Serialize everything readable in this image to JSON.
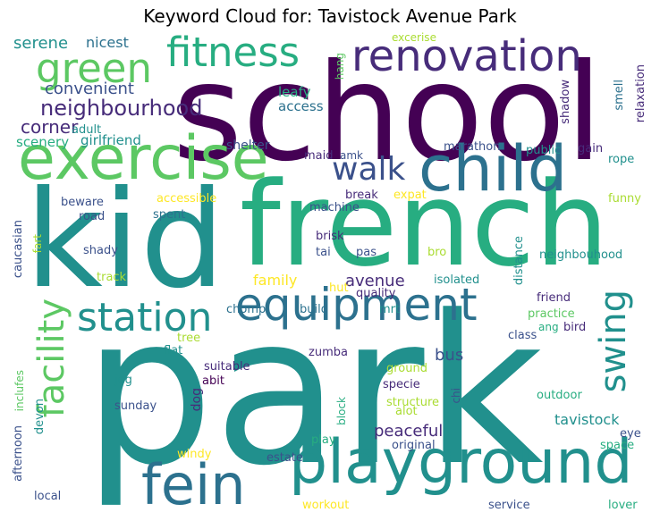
{
  "title": "Keyword Cloud for: Tavistock Avenue Park",
  "colors": {
    "dark_purple": "#440154",
    "purple": "#472c7a",
    "indigo": "#3b518b",
    "blue": "#2c718e",
    "teal_blue": "#21908d",
    "teal": "#27ad81",
    "green": "#5cc863",
    "lime": "#aadc32",
    "yellow": "#fde725"
  },
  "words": [
    {
      "text": "school"
    },
    {
      "text": "park"
    },
    {
      "text": "kid"
    },
    {
      "text": "french"
    },
    {
      "text": "exercise"
    },
    {
      "text": "child"
    },
    {
      "text": "playground"
    },
    {
      "text": "fein"
    },
    {
      "text": "equipment"
    },
    {
      "text": "station"
    },
    {
      "text": "fitness"
    },
    {
      "text": "renovation"
    },
    {
      "text": "green"
    },
    {
      "text": "facility"
    },
    {
      "text": "swing"
    },
    {
      "text": "walk"
    },
    {
      "text": "neighbourhood"
    },
    {
      "text": "convenient"
    },
    {
      "text": "serene"
    },
    {
      "text": "nicest"
    },
    {
      "text": "corner"
    },
    {
      "text": "adult"
    },
    {
      "text": "scenery"
    },
    {
      "text": "girlfriend"
    },
    {
      "text": "leafy"
    },
    {
      "text": "access"
    },
    {
      "text": "hang"
    },
    {
      "text": "excerise"
    },
    {
      "text": "shadow"
    },
    {
      "text": "smell"
    },
    {
      "text": "relaxation"
    },
    {
      "text": "shelter"
    },
    {
      "text": "maid"
    },
    {
      "text": "amk"
    },
    {
      "text": "marathon"
    },
    {
      "text": "public"
    },
    {
      "text": "gain"
    },
    {
      "text": "rope"
    },
    {
      "text": "accessible"
    },
    {
      "text": "break"
    },
    {
      "text": "expat"
    },
    {
      "text": "funny"
    },
    {
      "text": "beware"
    },
    {
      "text": "machine"
    },
    {
      "text": "road"
    },
    {
      "text": "spent"
    },
    {
      "text": "caucasian"
    },
    {
      "text": "fart"
    },
    {
      "text": "shady"
    },
    {
      "text": "brisk"
    },
    {
      "text": "tai"
    },
    {
      "text": "pas"
    },
    {
      "text": "bro"
    },
    {
      "text": "distance"
    },
    {
      "text": "neighbouhood"
    },
    {
      "text": "track"
    },
    {
      "text": "family"
    },
    {
      "text": "avenue"
    },
    {
      "text": "hut"
    },
    {
      "text": "isolated"
    },
    {
      "text": "quality"
    },
    {
      "text": "friend"
    },
    {
      "text": "practice"
    },
    {
      "text": "ang"
    },
    {
      "text": "bird"
    },
    {
      "text": "tree"
    },
    {
      "text": "chomp"
    },
    {
      "text": "build"
    },
    {
      "text": "mrt"
    },
    {
      "text": "class"
    },
    {
      "text": "flat"
    },
    {
      "text": "zumba"
    },
    {
      "text": "bus"
    },
    {
      "text": "inclufes"
    },
    {
      "text": "suitable"
    },
    {
      "text": "abit"
    },
    {
      "text": "ground"
    },
    {
      "text": "jog"
    },
    {
      "text": "dog"
    },
    {
      "text": "specie"
    },
    {
      "text": "chi"
    },
    {
      "text": "outdoor"
    },
    {
      "text": "sunday"
    },
    {
      "text": "block"
    },
    {
      "text": "structure"
    },
    {
      "text": "alot"
    },
    {
      "text": "tavistock"
    },
    {
      "text": "devon"
    },
    {
      "text": "peaceful"
    },
    {
      "text": "eye"
    },
    {
      "text": "afternoon"
    },
    {
      "text": "windy"
    },
    {
      "text": "play"
    },
    {
      "text": "original"
    },
    {
      "text": "space"
    },
    {
      "text": "estate"
    },
    {
      "text": "local"
    },
    {
      "text": "workout"
    },
    {
      "text": "service"
    },
    {
      "text": "lover"
    }
  ]
}
